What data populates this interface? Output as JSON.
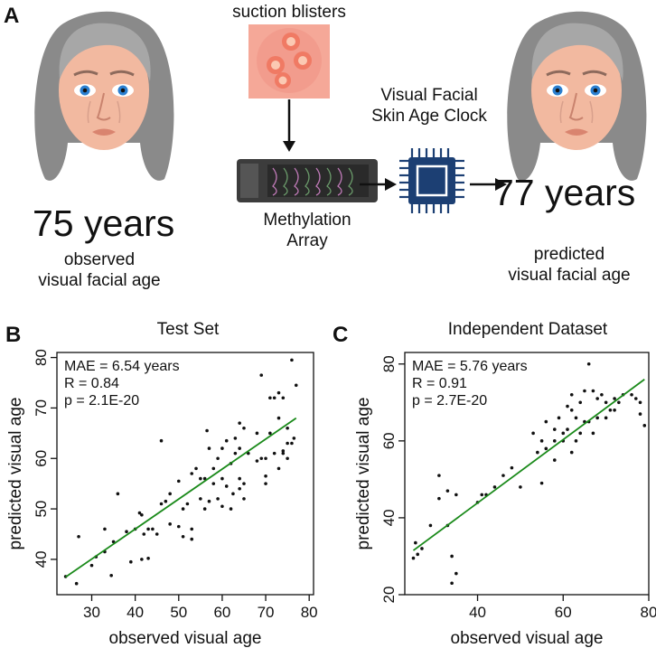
{
  "panel_a": {
    "letter": "A",
    "suction_label": "suction blisters",
    "clock_label_line1": "Visual Facial",
    "clock_label_line2": "Skin Age Clock",
    "array_label_line1": "Methylation",
    "array_label_line2": "Array",
    "observed_age": "75 years",
    "observed_caption_line1": "observed",
    "observed_caption_line2": "visual facial age",
    "predicted_age": "77 years",
    "predicted_caption_line1": "predicted",
    "predicted_caption_line2": "visual facial age"
  },
  "chart_data": [
    {
      "panel": "B",
      "type": "scatter",
      "title": "Test Set",
      "xlabel": "observed visual age",
      "ylabel": "predicted visual age",
      "xlim": [
        22,
        81
      ],
      "ylim": [
        33,
        81
      ],
      "xticks": [
        30,
        40,
        50,
        60,
        70,
        80
      ],
      "yticks": [
        40,
        50,
        60,
        70,
        80
      ],
      "annotations": [
        "MAE = 6.54 years",
        "R = 0.84",
        "p = 2.1E-20"
      ],
      "fit_line": {
        "x": [
          24,
          77
        ],
        "y": [
          36.5,
          68
        ]
      },
      "fit_color": "#1a8a1a",
      "points": [
        [
          24,
          36.6
        ],
        [
          26.5,
          35.2
        ],
        [
          27,
          44.5
        ],
        [
          30,
          38.8
        ],
        [
          31,
          40.5
        ],
        [
          33,
          41.5
        ],
        [
          33,
          46
        ],
        [
          34.5,
          36.8
        ],
        [
          35,
          43.5
        ],
        [
          36,
          53
        ],
        [
          38,
          45.5
        ],
        [
          39,
          39.5
        ],
        [
          40,
          46
        ],
        [
          41,
          49.2
        ],
        [
          41.5,
          48.8
        ],
        [
          41.5,
          40
        ],
        [
          42,
          45
        ],
        [
          43,
          40.2
        ],
        [
          43,
          46
        ],
        [
          44,
          46
        ],
        [
          45,
          45
        ],
        [
          46,
          63.5
        ],
        [
          46,
          51
        ],
        [
          47,
          51.5
        ],
        [
          48,
          47
        ],
        [
          48,
          53
        ],
        [
          50,
          46.5
        ],
        [
          50,
          55.5
        ],
        [
          51,
          50
        ],
        [
          51,
          44.5
        ],
        [
          52,
          51
        ],
        [
          53,
          57
        ],
        [
          53,
          44
        ],
        [
          53,
          46
        ],
        [
          54,
          58
        ],
        [
          55,
          52
        ],
        [
          55,
          56
        ],
        [
          56,
          56
        ],
        [
          56,
          50
        ],
        [
          56.5,
          65.5
        ],
        [
          57,
          51.5
        ],
        [
          57,
          62
        ],
        [
          58,
          55
        ],
        [
          58,
          58
        ],
        [
          59,
          52
        ],
        [
          59,
          60
        ],
        [
          60,
          50.5
        ],
        [
          60,
          56
        ],
        [
          60,
          62
        ],
        [
          61,
          63.5
        ],
        [
          61,
          54.5
        ],
        [
          62,
          59
        ],
        [
          62,
          50
        ],
        [
          62.5,
          53
        ],
        [
          63,
          61
        ],
        [
          63,
          64
        ],
        [
          64,
          62
        ],
        [
          64,
          56
        ],
        [
          64,
          54
        ],
        [
          64,
          67
        ],
        [
          65,
          55
        ],
        [
          65,
          66
        ],
        [
          65,
          52
        ],
        [
          66,
          61
        ],
        [
          68,
          59.5
        ],
        [
          68,
          65
        ],
        [
          69,
          76.5
        ],
        [
          69,
          60
        ],
        [
          70,
          56.5
        ],
        [
          70,
          55
        ],
        [
          70,
          60
        ],
        [
          71,
          72
        ],
        [
          71,
          65
        ],
        [
          72,
          61
        ],
        [
          72,
          72
        ],
        [
          73,
          73
        ],
        [
          73,
          68
        ],
        [
          73,
          58
        ],
        [
          74,
          61
        ],
        [
          74,
          72
        ],
        [
          74,
          61.5
        ],
        [
          75,
          63
        ],
        [
          75,
          66
        ],
        [
          75,
          60
        ],
        [
          76,
          79.5
        ],
        [
          76,
          63
        ],
        [
          76.5,
          64
        ],
        [
          77,
          74.5
        ]
      ]
    },
    {
      "panel": "C",
      "type": "scatter",
      "title": "Independent Dataset",
      "xlabel": "observed visual age",
      "ylabel": "predicted visual age",
      "xlim": [
        23,
        80
      ],
      "ylim": [
        20,
        83
      ],
      "xticks": [
        40,
        60,
        80
      ],
      "yticks": [
        20,
        40,
        60,
        80
      ],
      "annotations": [
        "MAE = 5.76 years",
        "R = 0.91",
        "p = 2.7E-20"
      ],
      "fit_line": {
        "x": [
          25,
          79
        ],
        "y": [
          31.5,
          76
        ]
      },
      "fit_color": "#1a8a1a",
      "points": [
        [
          25,
          29.5
        ],
        [
          25.5,
          33.5
        ],
        [
          26,
          30.5
        ],
        [
          27,
          32
        ],
        [
          29,
          38
        ],
        [
          31,
          51
        ],
        [
          31,
          45
        ],
        [
          33,
          47
        ],
        [
          33,
          38
        ],
        [
          34,
          30
        ],
        [
          34,
          23
        ],
        [
          35,
          25.5
        ],
        [
          35,
          46
        ],
        [
          40,
          44
        ],
        [
          41,
          46
        ],
        [
          42,
          46
        ],
        [
          44,
          48
        ],
        [
          46,
          51
        ],
        [
          48,
          53
        ],
        [
          50,
          48
        ],
        [
          53,
          62
        ],
        [
          54,
          57
        ],
        [
          55,
          60
        ],
        [
          55,
          49
        ],
        [
          56,
          58
        ],
        [
          56,
          65
        ],
        [
          58,
          60
        ],
        [
          58,
          63
        ],
        [
          58,
          55
        ],
        [
          59,
          66
        ],
        [
          60,
          62
        ],
        [
          60,
          60
        ],
        [
          61,
          63
        ],
        [
          61,
          69
        ],
        [
          62,
          72
        ],
        [
          62,
          57
        ],
        [
          62,
          68
        ],
        [
          63,
          60
        ],
        [
          63,
          66
        ],
        [
          64,
          70
        ],
        [
          64,
          62
        ],
        [
          65,
          65
        ],
        [
          65,
          73
        ],
        [
          66,
          80
        ],
        [
          66,
          65
        ],
        [
          67,
          73
        ],
        [
          67,
          62
        ],
        [
          68,
          66
        ],
        [
          68,
          71
        ],
        [
          69,
          72
        ],
        [
          70,
          70
        ],
        [
          70,
          66
        ],
        [
          71,
          68
        ],
        [
          72,
          68
        ],
        [
          72,
          71
        ],
        [
          73,
          70
        ],
        [
          74,
          72
        ],
        [
          76,
          72
        ],
        [
          77,
          71
        ],
        [
          78,
          67
        ],
        [
          78,
          70
        ],
        [
          79,
          64
        ]
      ]
    }
  ]
}
